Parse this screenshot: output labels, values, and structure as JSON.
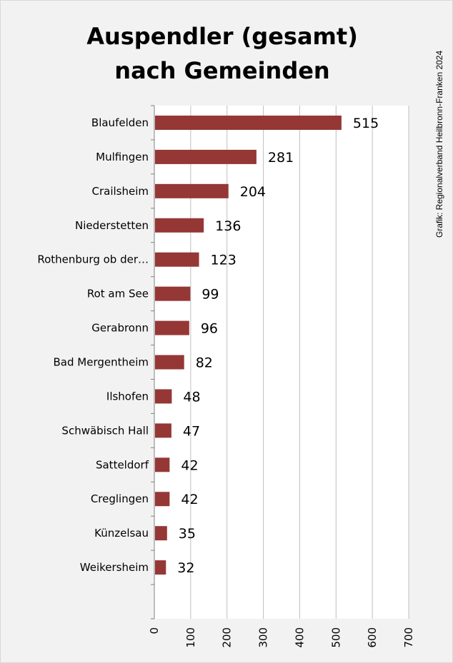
{
  "chart_data": {
    "type": "bar",
    "orientation": "horizontal",
    "title": [
      "Auspendler (gesamt)",
      "nach Gemeinden"
    ],
    "credit": "Grafik: Regionalverband Heilbronn-Franken 2024",
    "categories": [
      "Blaufelden",
      "Mulfingen",
      "Crailsheim",
      "Niederstetten",
      "Rothenburg ob der…",
      "Rot am See",
      "Gerabronn",
      "Bad Mergentheim",
      "Ilshofen",
      "Schwäbisch Hall",
      "Satteldorf",
      "Creglingen",
      "Künzelsau",
      "Weikersheim"
    ],
    "values": [
      515,
      281,
      204,
      136,
      123,
      99,
      96,
      82,
      48,
      47,
      42,
      42,
      35,
      32
    ],
    "xlim": [
      0,
      700
    ],
    "xticks": [
      0,
      100,
      200,
      300,
      400,
      500,
      600,
      700
    ],
    "grid": "vertical",
    "bar_color": "#953735"
  }
}
